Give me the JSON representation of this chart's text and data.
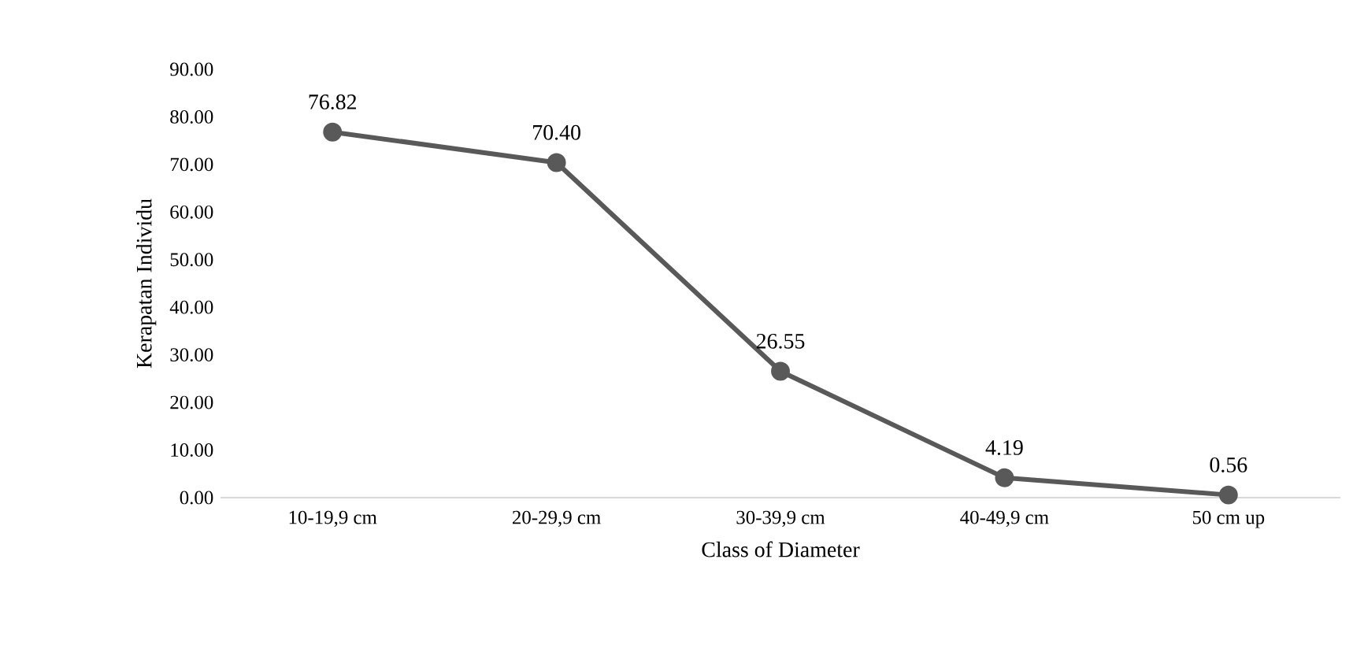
{
  "chart_data": {
    "type": "line",
    "xlabel": "Class of Diameter",
    "ylabel": "Kerapatan Individu",
    "categories": [
      "10-19,9 cm",
      "20-29,9 cm",
      "30-39,9 cm",
      "40-49,9 cm",
      "50 cm up"
    ],
    "values": [
      76.82,
      70.4,
      26.55,
      4.19,
      0.56
    ],
    "value_labels": [
      "76.82",
      "70.40",
      "26.55",
      "4.19",
      "0.56"
    ],
    "color": "#595959",
    "marker": "circle",
    "line_style": "solid",
    "ylim": [
      0,
      90
    ],
    "yticks": [
      {
        "value": 0,
        "label": "0.00"
      },
      {
        "value": 10,
        "label": "10.00"
      },
      {
        "value": 20,
        "label": "20.00"
      },
      {
        "value": 30,
        "label": "30.00"
      },
      {
        "value": 40,
        "label": "40.00"
      },
      {
        "value": 50,
        "label": "50.00"
      },
      {
        "value": 60,
        "label": "60.00"
      },
      {
        "value": 70,
        "label": "70.00"
      },
      {
        "value": 80,
        "label": "80.00"
      },
      {
        "value": 90,
        "label": "90.00"
      }
    ]
  }
}
